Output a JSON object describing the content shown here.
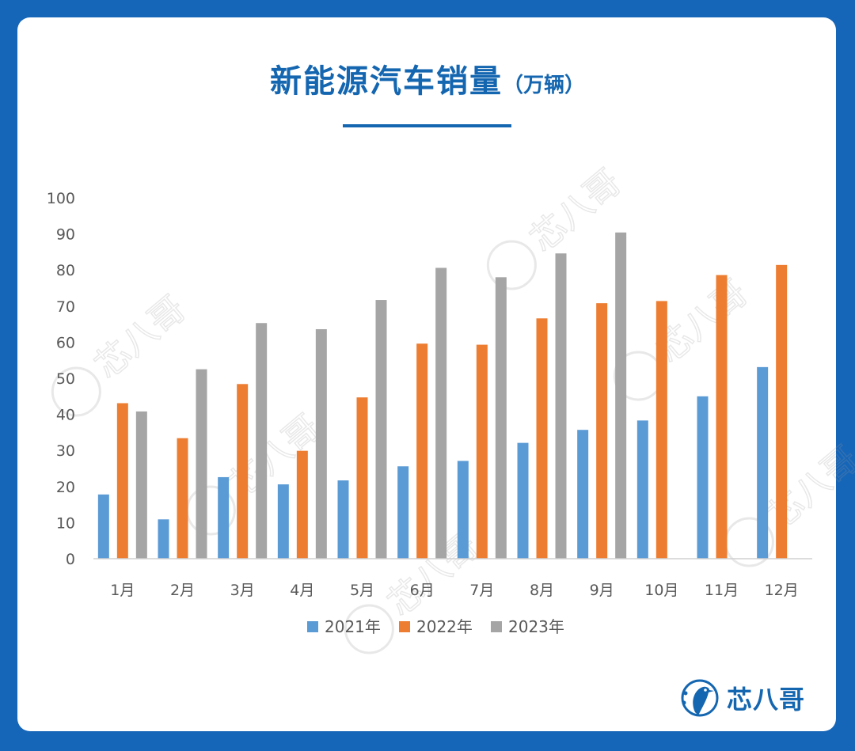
{
  "title": "新能源汽车销量",
  "title_unit": "（万辆）",
  "brand": {
    "name": "芯八哥",
    "accent": "#1466b0"
  },
  "watermark_text": "芯八哥",
  "colors": {
    "background": "#1565b8",
    "card": "#ffffff",
    "title": "#1466b0"
  },
  "chart_data": {
    "type": "bar",
    "categories": [
      "1月",
      "2月",
      "3月",
      "4月",
      "5月",
      "6月",
      "7月",
      "8月",
      "9月",
      "10月",
      "11月",
      "12月"
    ],
    "series": [
      {
        "name": "2021年",
        "color": "#5b9bd5",
        "values": [
          17.8,
          10.9,
          22.6,
          20.6,
          21.7,
          25.6,
          27.1,
          32.1,
          35.7,
          38.3,
          45.0,
          53.1
        ]
      },
      {
        "name": "2022年",
        "color": "#ed7d31",
        "values": [
          43.1,
          33.4,
          48.4,
          29.9,
          44.7,
          59.6,
          59.3,
          66.6,
          70.8,
          71.4,
          78.6,
          81.4
        ]
      },
      {
        "name": "2023年",
        "color": "#a5a5a5",
        "values": [
          40.8,
          52.5,
          65.3,
          63.6,
          71.7,
          80.6,
          78.0,
          84.6,
          90.4,
          null,
          null,
          null
        ]
      }
    ],
    "ylim": [
      0,
      100
    ],
    "yticks": [
      0,
      10,
      20,
      30,
      40,
      50,
      60,
      70,
      80,
      90,
      100
    ],
    "grid": false,
    "legend_position": "bottom",
    "xlabel": "",
    "ylabel": ""
  }
}
